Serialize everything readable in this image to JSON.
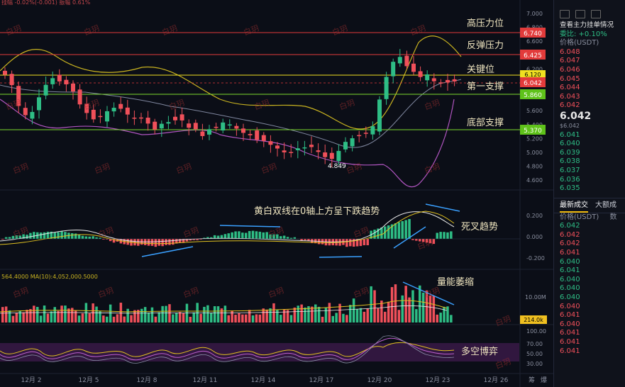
{
  "top_info": "挂幅 -0.02%(-0.001)  振幅 0.61%",
  "watermark": "白玥",
  "annotations": {
    "resistance_high": "高压力位",
    "rebound_resistance": "反弹压力",
    "key_level": "关键位",
    "first_support": "第一支撑",
    "bottom_support": "底部支撑",
    "macd_note": "黄白双线在0轴上方呈下跌趋势",
    "death_cross": "死叉趋势",
    "volume_note": "量能萎缩",
    "long_short": "多空博弈",
    "low_marker": "4.849"
  },
  "price_tags": {
    "p6740": "6.740",
    "p6425": "6.425",
    "p6120": "6.120",
    "p6042": "6.042",
    "p5860": "5.860",
    "p5370": "5.370"
  },
  "price_axis": [
    "7.000",
    "6.800",
    "6.600",
    "6.400",
    "6.200",
    "6.000",
    "5.800",
    "5.600",
    "5.400",
    "5.200",
    "5.000",
    "4.800",
    "4.600"
  ],
  "macd_axis": [
    "0.200",
    "0.000",
    "-0.200"
  ],
  "volume_info": "564.4000  MA(10):4,052,000.5000",
  "volume_axis": "10.00M",
  "volume_tag": "214.0k",
  "rsi_axis": [
    "100.00",
    "70.00",
    "50.00",
    "30.00"
  ],
  "x_labels": [
    "12月 2",
    "12月 5",
    "12月 8",
    "12月 11",
    "12月 14",
    "12月 17",
    "12月 20",
    "12月 23",
    "12月 26"
  ],
  "bottom_right": [
    "筹",
    "爆"
  ],
  "colors": {
    "up": "#2ebd85",
    "down": "#f0505a",
    "resistance": "#e23b3b",
    "key": "#f0e020",
    "support": "#7cd92c"
  },
  "orderbook": {
    "title": "查看主力挂单情况",
    "ratio": "委比: +0.10%",
    "header": "价格(USDT)",
    "asks": [
      "6.048",
      "6.047",
      "6.046",
      "6.045",
      "6.044",
      "6.043",
      "6.042"
    ],
    "last": "6.042",
    "last_sub": "$6.042",
    "bids": [
      "6.041",
      "6.040",
      "6.039",
      "6.038",
      "6.037",
      "6.036",
      "6.035"
    ]
  },
  "trades": {
    "tab_latest": "最新成交",
    "tab_big": "大额成",
    "header_price": "价格(USDT)",
    "header_qty": "数",
    "rows": [
      {
        "p": "6.042",
        "c": "up"
      },
      {
        "p": "6.042",
        "c": "down"
      },
      {
        "p": "6.042",
        "c": "down"
      },
      {
        "p": "6.041",
        "c": "down"
      },
      {
        "p": "6.040",
        "c": "up"
      },
      {
        "p": "6.041",
        "c": "up"
      },
      {
        "p": "6.040",
        "c": "up"
      },
      {
        "p": "6.040",
        "c": "up"
      },
      {
        "p": "6.040",
        "c": "up"
      },
      {
        "p": "6.040",
        "c": "down"
      },
      {
        "p": "6.041",
        "c": "down"
      },
      {
        "p": "6.040",
        "c": "down"
      },
      {
        "p": "6.041",
        "c": "down"
      },
      {
        "p": "6.041",
        "c": "down"
      },
      {
        "p": "6.041",
        "c": "down"
      }
    ]
  }
}
